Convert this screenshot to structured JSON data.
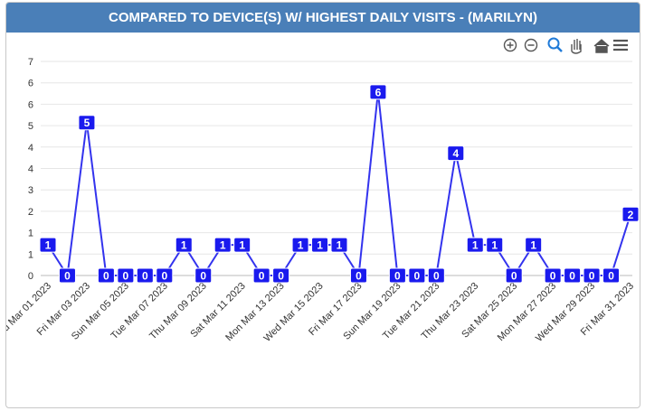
{
  "header": {
    "title": "COMPARED TO DEVICE(S) W/ HIGHEST DAILY VISITS - (MARILYN)"
  },
  "chart_data": {
    "type": "line",
    "color": "#3333ee",
    "grid": true,
    "categories": [
      "Wed Mar 01 2023",
      null,
      "Fri Mar 03 2023",
      null,
      "Sun Mar 05 2023",
      null,
      "Tue Mar 07 2023",
      null,
      "Thu Mar 09 2023",
      null,
      "Sat Mar 11 2023",
      null,
      "Mon Mar 13 2023",
      null,
      "Wed Mar 15 2023",
      null,
      "Fri Mar 17 2023",
      null,
      "Sun Mar 19 2023",
      null,
      "Tue Mar 21 2023",
      null,
      "Thu Mar 23 2023",
      null,
      "Sat Mar 25 2023",
      null,
      "Mon Mar 27 2023",
      null,
      "Wed Mar 29 2023",
      null,
      "Fri Mar 31 2023"
    ],
    "values": [
      1,
      0,
      5,
      0,
      0,
      0,
      0,
      1,
      0,
      1,
      1,
      0,
      0,
      1,
      1,
      1,
      0,
      6,
      0,
      0,
      0,
      4,
      1,
      1,
      0,
      1,
      0,
      0,
      0,
      0,
      2
    ],
    "ylim": [
      0,
      7
    ],
    "yticks": [
      0,
      {
        "value": 0.7,
        "label": "1"
      },
      {
        "value": 1.4,
        "label": "1"
      },
      {
        "value": 2.1,
        "label": "2"
      },
      {
        "value": 2.8,
        "label": "3"
      },
      {
        "value": 3.5,
        "label": "4"
      },
      {
        "value": 4.2,
        "label": "4"
      },
      {
        "value": 4.9,
        "label": "5"
      },
      {
        "value": 5.6,
        "label": "6"
      },
      {
        "value": 6.3,
        "label": "6"
      },
      7
    ]
  }
}
